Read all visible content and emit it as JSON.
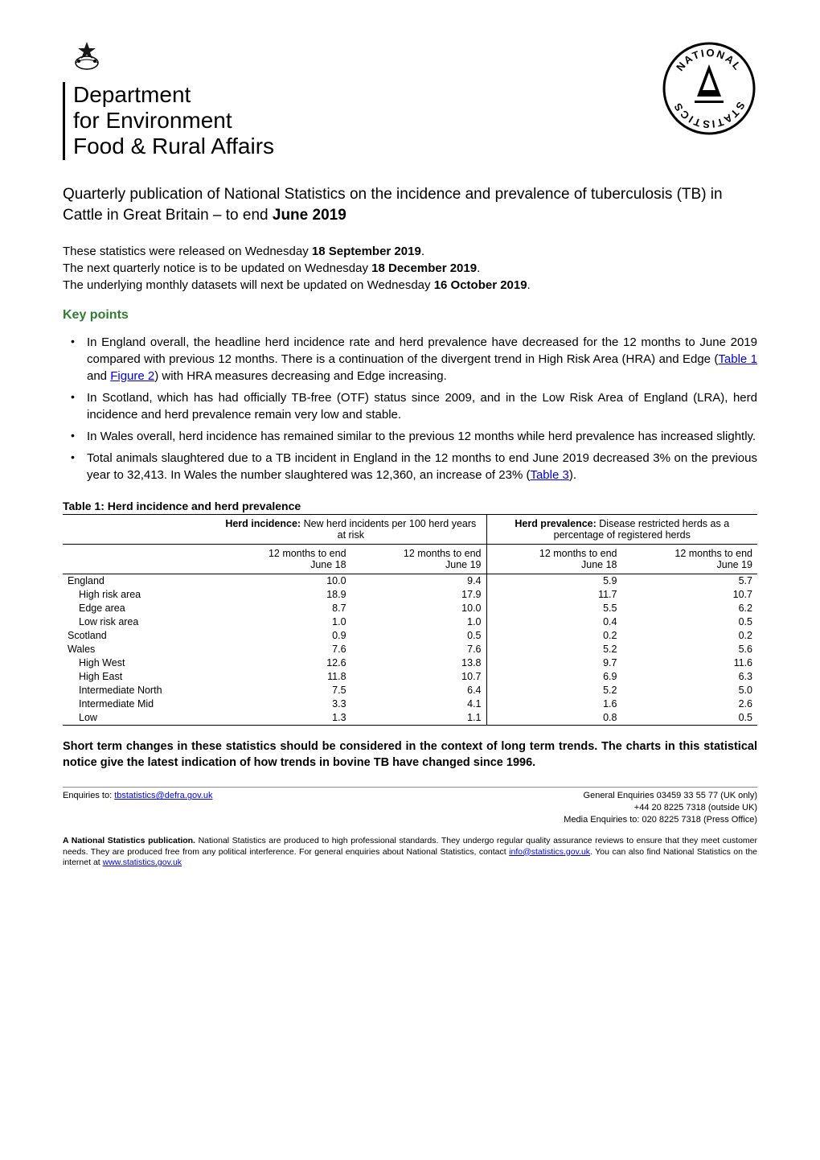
{
  "logos": {
    "defra_lines": [
      "Department",
      "for Environment",
      "Food & Rural Affairs"
    ],
    "crest_glyph": "♛",
    "nat_stats_text": "NATIONAL STATISTICS"
  },
  "title": {
    "pre": "Quarterly publication of National Statistics on the incidence and prevalence of tuberculosis (TB) in Cattle in Great Britain – to end ",
    "bold": "June 2019"
  },
  "release": {
    "line1_pre": "These statistics were released on Wednesday ",
    "line1_bold": "18 September 2019",
    "line1_post": ".",
    "line2_pre": "The next quarterly notice is to be updated on Wednesday ",
    "line2_bold": "18 December 2019",
    "line2_post": ".",
    "line3_pre": "The underlying monthly datasets will next be updated on Wednesday ",
    "line3_bold": "16 October 2019",
    "line3_post": "."
  },
  "key_points": {
    "heading": "Key points",
    "items": [
      {
        "parts": [
          {
            "text": "In England overall, the headline herd incidence rate and herd prevalence have decreased for the 12 months to June 2019 compared with previous 12 months. There is a continuation of the divergent trend in High Risk Area (HRA) and Edge ("
          },
          {
            "text": "Table 1",
            "link": true
          },
          {
            "text": " and "
          },
          {
            "text": "Figure 2",
            "link": true
          },
          {
            "text": ") with HRA measures decreasing and Edge increasing."
          }
        ]
      },
      {
        "parts": [
          {
            "text": "In Scotland, which has had officially TB-free (OTF) status since 2009, and in the Low Risk Area of England (LRA), herd incidence and herd prevalence remain very low and stable."
          }
        ]
      },
      {
        "parts": [
          {
            "text": "In Wales overall, herd incidence has remained similar to the previous 12 months while herd prevalence has increased slightly."
          }
        ]
      },
      {
        "parts": [
          {
            "text": "Total animals slaughtered due to a TB incident in England in the 12 months to end June 2019 decreased 3% on the previous year to 32,413. In Wales the number slaughtered was 12,360, an increase of 23% ("
          },
          {
            "text": "Table 3",
            "link": true
          },
          {
            "text": ")."
          }
        ]
      }
    ]
  },
  "table1": {
    "title": "Table 1: Herd incidence and herd prevalence",
    "header_groups": {
      "incidence_bold": "Herd incidence:",
      "incidence_rest": " New herd incidents per 100 herd years at risk",
      "prevalence_bold": "Herd prevalence:",
      "prevalence_rest": " Disease restricted herds as a percentage of registered herds"
    },
    "subheaders": {
      "col1_line1": "12 months to end",
      "col1_line2": "June 18",
      "col2_line1": "12 months to end",
      "col2_line2": "June 19",
      "col3_line1": "12 months to end",
      "col3_line2": "June 18",
      "col4_line1": "12 months to end",
      "col4_line2": "June 19"
    },
    "rows": [
      {
        "label": "England",
        "indent": 0,
        "values": [
          "10.0",
          "9.4",
          "5.9",
          "5.7"
        ]
      },
      {
        "label": "High risk area",
        "indent": 1,
        "values": [
          "18.9",
          "17.9",
          "11.7",
          "10.7"
        ]
      },
      {
        "label": "Edge area",
        "indent": 1,
        "values": [
          "8.7",
          "10.0",
          "5.5",
          "6.2"
        ]
      },
      {
        "label": "Low risk area",
        "indent": 1,
        "values": [
          "1.0",
          "1.0",
          "0.4",
          "0.5"
        ]
      },
      {
        "label": "Scotland",
        "indent": 0,
        "values": [
          "0.9",
          "0.5",
          "0.2",
          "0.2"
        ]
      },
      {
        "label": "Wales",
        "indent": 0,
        "values": [
          "7.6",
          "7.6",
          "5.2",
          "5.6"
        ]
      },
      {
        "label": "High West",
        "indent": 1,
        "values": [
          "12.6",
          "13.8",
          "9.7",
          "11.6"
        ]
      },
      {
        "label": "High East",
        "indent": 1,
        "values": [
          "11.8",
          "10.7",
          "6.9",
          "6.3"
        ]
      },
      {
        "label": "Intermediate North",
        "indent": 1,
        "values": [
          "7.5",
          "6.4",
          "5.2",
          "5.0"
        ]
      },
      {
        "label": "Intermediate Mid",
        "indent": 1,
        "values": [
          "3.3",
          "4.1",
          "1.6",
          "2.6"
        ]
      },
      {
        "label": "Low",
        "indent": 1,
        "values": [
          "1.3",
          "1.1",
          "0.8",
          "0.5"
        ]
      }
    ],
    "styling": {
      "font_size": 12.5,
      "border_color": "#000000",
      "col_widths_pct": [
        22,
        19.5,
        19.5,
        19.5,
        19.5
      ]
    }
  },
  "context_text": "Short term changes in these statistics should be considered in the context of long term trends. The charts in this statistical notice give the latest indication of how trends in bovine TB have changed since 1996.",
  "footer": {
    "enquiries_to_label": "Enquiries to: ",
    "enquiries_email": "tbstatistics@defra.gov.uk",
    "general_enquiries": "General Enquiries 03459 33 55 77 (UK only)",
    "outside_uk": "+44 20 8225 7318 (outside UK)",
    "media": "Media Enquiries to: 020 8225 7318 (Press Office)",
    "note_bold": "A National Statistics publication.",
    "note_text1": " National Statistics are produced to high professional standards. They undergo regular quality assurance reviews to ensure that they meet customer needs. They are produced free from any political interference. For general enquiries about National Statistics, contact ",
    "note_link1": "info@statistics.gov.uk",
    "note_text2": ". You can also find National Statistics on the internet at ",
    "note_link2": "www.statistics.gov.uk"
  },
  "colors": {
    "text": "#000000",
    "link": "#0000ee",
    "key_points_heading": "#2e7d32",
    "background": "#ffffff",
    "divider": "#888888"
  }
}
